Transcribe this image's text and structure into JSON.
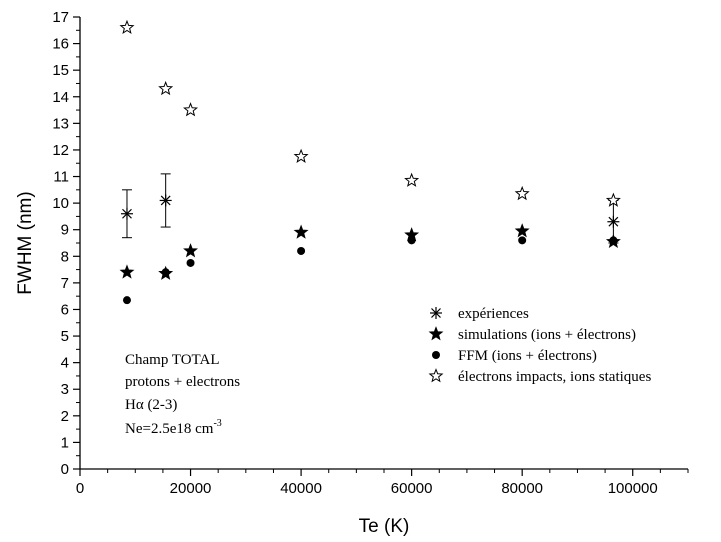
{
  "chart_data": {
    "type": "scatter",
    "xlabel": "Te (K)",
    "ylabel": "FWHM (nm)",
    "xlim": [
      0,
      110000
    ],
    "ylim": [
      0,
      17
    ],
    "x_ticks": [
      0,
      20000,
      40000,
      60000,
      80000,
      100000
    ],
    "x_tick_labels": [
      "0",
      "20000",
      "40000",
      "60000",
      "80000",
      "100000"
    ],
    "y_ticks": [
      0,
      1,
      2,
      3,
      4,
      5,
      6,
      7,
      8,
      9,
      10,
      11,
      12,
      13,
      14,
      15,
      16,
      17
    ],
    "y_tick_labels": [
      "0",
      "1",
      "2",
      "3",
      "4",
      "5",
      "6",
      "7",
      "8",
      "9",
      "10",
      "11",
      "12",
      "13",
      "14",
      "15",
      "16",
      "17"
    ],
    "series": [
      {
        "name": "expériences",
        "marker": "asterisk",
        "x": [
          8500,
          15500,
          96500
        ],
        "y": [
          9.6,
          10.1,
          9.3
        ],
        "err": [
          0.9,
          1.0,
          0.8
        ]
      },
      {
        "name": "simulations (ions + électrons)",
        "marker": "star-filled",
        "x": [
          8500,
          15500,
          20000,
          40000,
          60000,
          80000,
          96500
        ],
        "y": [
          7.4,
          7.35,
          8.2,
          8.9,
          8.8,
          8.95,
          8.55
        ]
      },
      {
        "name": "FFM (ions + électrons)",
        "marker": "dot",
        "x": [
          8500,
          15500,
          20000,
          40000,
          60000,
          80000,
          96500
        ],
        "y": [
          6.35,
          7.4,
          7.75,
          8.2,
          8.6,
          8.6,
          8.6
        ]
      },
      {
        "name": "électrons impacts, ions statiques",
        "marker": "star-open",
        "x": [
          8500,
          15500,
          20000,
          40000,
          60000,
          80000,
          96500
        ],
        "y": [
          16.6,
          14.3,
          13.5,
          11.75,
          10.85,
          10.35,
          10.1
        ]
      }
    ],
    "annotation": {
      "lines": [
        "Champ TOTAL",
        "protons + electrons",
        "Hα (2-3)"
      ],
      "density_base": "Ne=2.5e18 cm",
      "density_exp": "-3"
    },
    "legend_position": "right"
  }
}
